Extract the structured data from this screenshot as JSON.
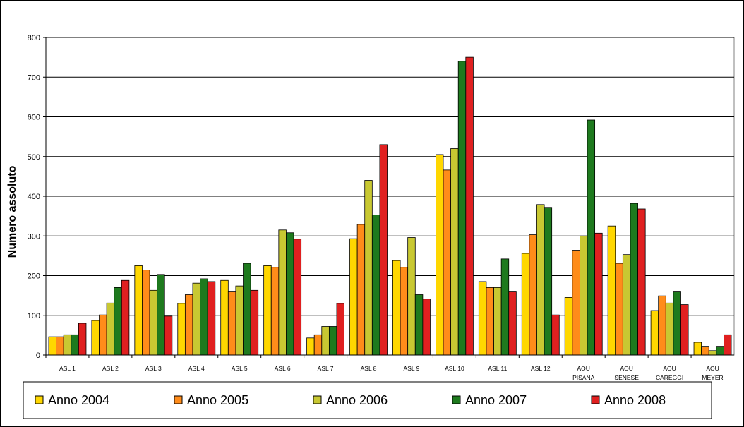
{
  "chart_data": {
    "type": "bar",
    "title": "",
    "xlabel": "",
    "ylabel": "Numero assoluto",
    "ylim": [
      0,
      800
    ],
    "yticks": [
      "0",
      "100",
      "200",
      "300",
      "400",
      "500",
      "600",
      "700",
      "800"
    ],
    "grid": true,
    "legend_position": "bottom",
    "categories": [
      "ASL 1",
      "ASL 2",
      "ASL 3",
      "ASL 4",
      "ASL 5",
      "ASL 6",
      "ASL 7",
      "ASL 8",
      "ASL 9",
      "ASL 10",
      "ASL 11",
      "ASL 12",
      "AOU PISANA",
      "AOU SENESE",
      "AOU CAREGGI",
      "AOU MEYER"
    ],
    "series": [
      {
        "name": "Anno 2004",
        "color": "#ffd700",
        "values": [
          46,
          87,
          225,
          130,
          188,
          225,
          43,
          293,
          238,
          505,
          185,
          256,
          145,
          325,
          112,
          32
        ]
      },
      {
        "name": "Anno 2005",
        "color": "#ff8c1a",
        "values": [
          46,
          101,
          214,
          152,
          159,
          221,
          51,
          329,
          221,
          466,
          170,
          303,
          264,
          231,
          149,
          22
        ]
      },
      {
        "name": "Anno 2006",
        "color": "#c8c832",
        "values": [
          51,
          131,
          163,
          181,
          174,
          315,
          72,
          440,
          296,
          520,
          170,
          379,
          300,
          253,
          131,
          11
        ]
      },
      {
        "name": "Anno 2007",
        "color": "#1e7a1e",
        "values": [
          51,
          170,
          203,
          192,
          231,
          308,
          72,
          353,
          152,
          740,
          242,
          372,
          592,
          382,
          159,
          22
        ]
      },
      {
        "name": "Anno 2008",
        "color": "#e02020",
        "values": [
          80,
          188,
          98,
          185,
          163,
          292,
          130,
          530,
          141,
          750,
          159,
          101,
          307,
          368,
          127,
          51
        ]
      }
    ]
  }
}
